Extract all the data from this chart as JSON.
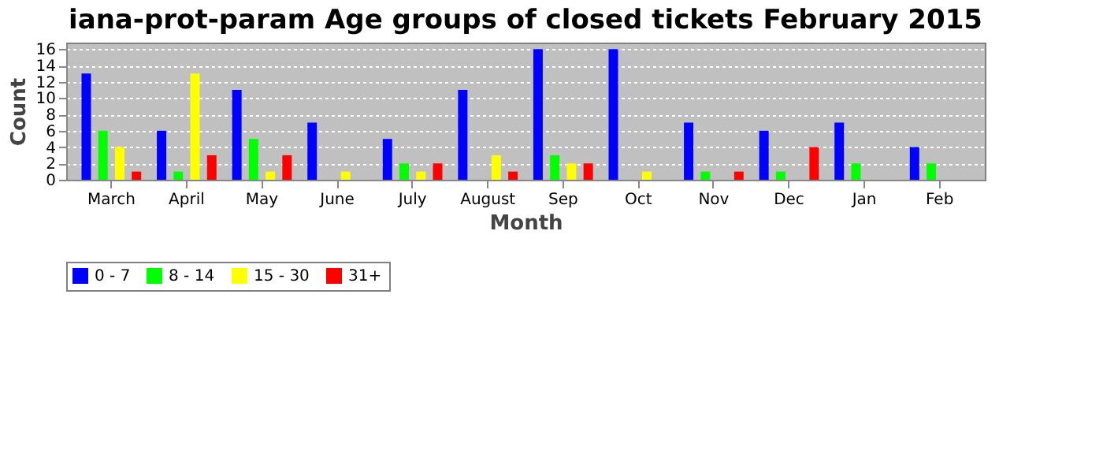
{
  "chart_data": {
    "type": "bar",
    "title": "iana-prot-param Age groups of closed tickets February 2015",
    "xlabel": "Month",
    "ylabel": "Count",
    "categories": [
      "March",
      "April",
      "May",
      "June",
      "July",
      "August",
      "Sep",
      "Oct",
      "Nov",
      "Dec",
      "Jan",
      "Feb"
    ],
    "series": [
      {
        "name": "0 - 7",
        "color": "#0000ff",
        "values": [
          13,
          6,
          11,
          7,
          5,
          11,
          16,
          16,
          7,
          6,
          7,
          4
        ]
      },
      {
        "name": "8 - 14",
        "color": "#00ff00",
        "values": [
          6,
          1,
          5,
          0,
          2,
          0,
          3,
          0,
          1,
          1,
          2,
          2
        ]
      },
      {
        "name": "15 - 30",
        "color": "#ffff00",
        "values": [
          4,
          13,
          1,
          1,
          1,
          3,
          2,
          1,
          0,
          0,
          0,
          0
        ]
      },
      {
        "name": "31+",
        "color": "#ff0000",
        "values": [
          1,
          3,
          3,
          0,
          2,
          1,
          2,
          0,
          1,
          4,
          0,
          0
        ]
      }
    ],
    "ylim": [
      0,
      16.8
    ],
    "yticks": [
      0,
      2,
      4,
      6,
      8,
      10,
      12,
      14,
      16
    ],
    "grid": "y",
    "legend": "bottom"
  }
}
